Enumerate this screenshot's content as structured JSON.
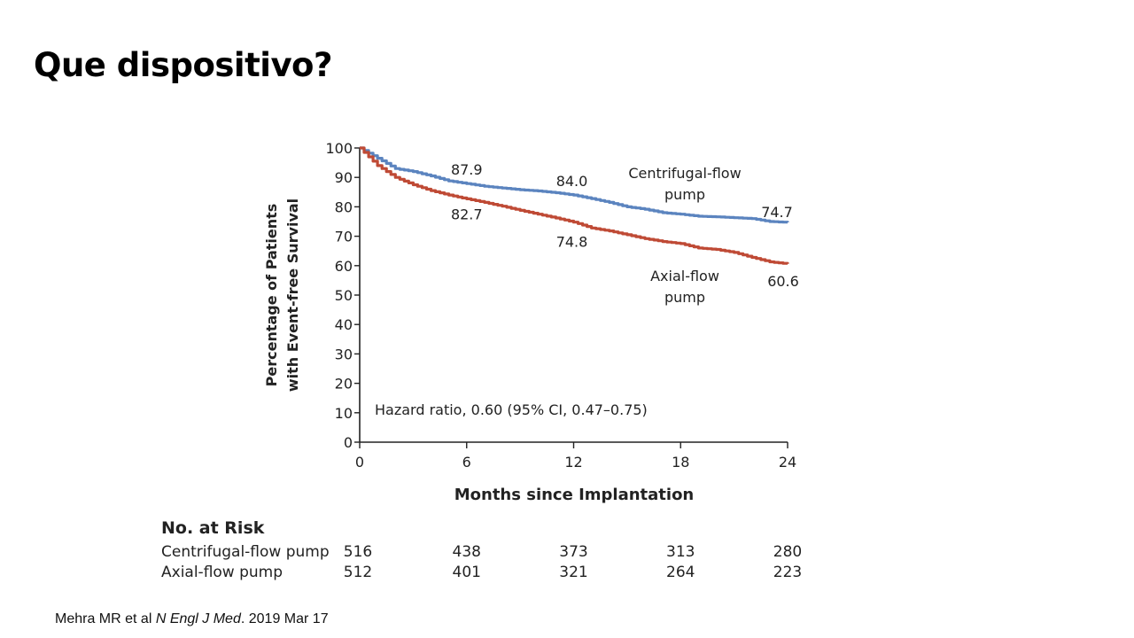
{
  "slide": {
    "title": "Que dispositivo?",
    "citation": {
      "prefix": "Mehra MR et al ",
      "journal": "N Engl J Med",
      "suffix": ". 2019 Mar 17"
    }
  },
  "chart_data": {
    "type": "line",
    "title": "",
    "xlabel": "Months since Implantation",
    "ylabel_lines": [
      "Percentage of Patients",
      "with Event-free Survival"
    ],
    "xlim": [
      0,
      24
    ],
    "ylim": [
      0,
      100
    ],
    "x_ticks": [
      0,
      6,
      12,
      18,
      24
    ],
    "y_ticks": [
      0,
      10,
      20,
      30,
      40,
      50,
      60,
      70,
      80,
      90,
      100
    ],
    "grid": false,
    "colors": {
      "centrifugal": "#5b84bf",
      "axial": "#bf4a35",
      "axis": "#222222"
    },
    "series": [
      {
        "name_lines": [
          "Centrifugal-flow",
          "pump"
        ],
        "x": [
          0,
          1,
          2,
          3,
          4,
          5,
          6,
          7,
          8,
          9,
          10,
          11,
          12,
          13,
          14,
          15,
          16,
          17,
          18,
          19,
          20,
          21,
          22,
          23,
          24
        ],
        "y": [
          100,
          96.5,
          93,
          92,
          90.5,
          88.8,
          87.9,
          87,
          86.4,
          85.8,
          85.4,
          84.8,
          84.0,
          82.8,
          81.5,
          80,
          79.2,
          78,
          77.5,
          76.8,
          76.6,
          76.3,
          76.0,
          75.0,
          74.7
        ]
      },
      {
        "name_lines": [
          "Axial-flow",
          "pump"
        ],
        "x": [
          0,
          1,
          2,
          3,
          4,
          5,
          6,
          7,
          8,
          9,
          10,
          11,
          12,
          13,
          14,
          15,
          16,
          17,
          18,
          19,
          20,
          21,
          22,
          23,
          24
        ],
        "y": [
          100,
          94,
          90,
          87.5,
          85.5,
          84,
          82.7,
          81.5,
          80.2,
          78.8,
          77.5,
          76.2,
          74.8,
          72.8,
          71.8,
          70.5,
          69.2,
          68.2,
          67.5,
          66,
          65.5,
          64.5,
          62.8,
          61.3,
          60.6
        ]
      }
    ],
    "annotations": [
      {
        "text": "87.9",
        "x": 6,
        "y": 87.9,
        "series": 0
      },
      {
        "text": "84.0",
        "x": 12,
        "y": 84.0,
        "series": 0
      },
      {
        "text": "74.7",
        "x": 24,
        "y": 74.7,
        "series": 0
      },
      {
        "text": "82.7",
        "x": 6,
        "y": 82.7,
        "series": 1
      },
      {
        "text": "74.8",
        "x": 12,
        "y": 74.8,
        "series": 1
      },
      {
        "text": "60.6",
        "x": 24,
        "y": 60.6,
        "series": 1
      }
    ],
    "hazard_ratio_text": "Hazard ratio, 0.60 (95% CI, 0.47–0.75)",
    "risk_table": {
      "title": "No. at Risk",
      "rows": [
        {
          "label": "Centrifugal-flow pump",
          "values": [
            516,
            438,
            373,
            313,
            280
          ]
        },
        {
          "label": "Axial-flow pump",
          "values": [
            512,
            401,
            321,
            264,
            223
          ]
        }
      ]
    }
  }
}
